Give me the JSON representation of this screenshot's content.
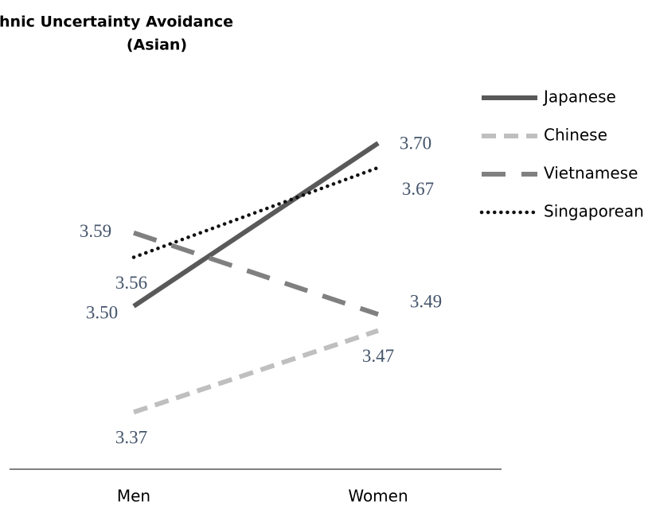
{
  "chart_data": {
    "type": "line",
    "title": [
      "Ethnic Uncertainty Avoidance",
      "(Asian)"
    ],
    "categories": [
      "Men",
      "Women"
    ],
    "ylim": [
      3.3,
      3.8
    ],
    "legend": "top-right",
    "series": [
      {
        "name": "Japanese",
        "color": "#595959",
        "dash": "solid",
        "values": [
          3.5,
          3.7
        ],
        "value_labels": [
          "3.50",
          "3.70"
        ]
      },
      {
        "name": "Chinese",
        "color": "#bfbfbf",
        "dash": "dashed",
        "values": [
          3.37,
          3.47
        ],
        "value_labels": [
          "3.37",
          "3.47"
        ]
      },
      {
        "name": "Vietnamese",
        "color": "#808080",
        "dash": "longdash",
        "values": [
          3.59,
          3.49
        ],
        "value_labels": [
          "3.59",
          "3.49"
        ]
      },
      {
        "name": "Singaporean",
        "color": "#111111",
        "dash": "dotted",
        "values": [
          3.56,
          3.67
        ],
        "value_labels": [
          "3.56",
          "3.67"
        ]
      }
    ]
  }
}
